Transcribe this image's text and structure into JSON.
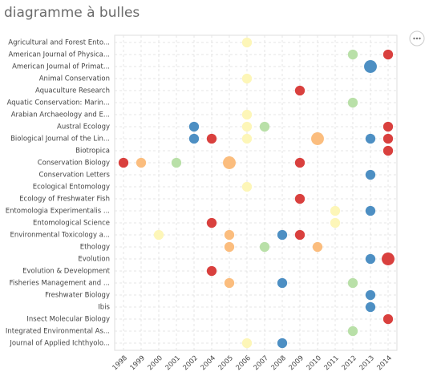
{
  "chart_data": {
    "type": "bubble",
    "title": "diagramme à bulles",
    "categories": [
      "Agricultural and Forest Ento...",
      "American Journal of Physica...",
      "American Journal of Primat...",
      "Animal Conservation",
      "Aquaculture Research",
      "Aquatic Conservation: Marin...",
      "Arabian Archaeology and E...",
      "Austral Ecology",
      "Biological Journal of the Lin...",
      "Biotropica",
      "Conservation Biology",
      "Conservation Letters",
      "Ecological Entomology",
      "Ecology of Freshwater Fish",
      "Entomologia Experimentalis ...",
      "Entomological Science",
      "Environmental Toxicology a...",
      "Ethology",
      "Evolution",
      "Evolution & Development",
      "Fisheries Management and ...",
      "Freshwater Biology",
      "Ibis",
      "Insect Molecular Biology",
      "Integrated Environmental As...",
      "Journal of Applied Ichthyolo..."
    ],
    "x_categories": [
      "1998",
      "1999",
      "2000",
      "2001",
      "2002",
      "2004",
      "2005",
      "2006",
      "2007",
      "2008",
      "2009",
      "2010",
      "2011",
      "2012",
      "2013",
      "2014"
    ],
    "points": [
      {
        "x": "2006",
        "y": "Agricultural and Forest Ento...",
        "size": 1,
        "color": "#fdf6b8"
      },
      {
        "x": "2012",
        "y": "American Journal of Physica...",
        "size": 1,
        "color": "#b9e0a8"
      },
      {
        "x": "2014",
        "y": "American Journal of Physica...",
        "size": 1,
        "color": "#d9403e"
      },
      {
        "x": "2013",
        "y": "American Journal of Primat...",
        "size": 2,
        "color": "#4d8fc3"
      },
      {
        "x": "2006",
        "y": "Animal Conservation",
        "size": 1,
        "color": "#fdf6b8"
      },
      {
        "x": "2009",
        "y": "Aquaculture Research",
        "size": 1,
        "color": "#d9403e"
      },
      {
        "x": "2012",
        "y": "Aquatic Conservation: Marin...",
        "size": 1,
        "color": "#b9e0a8"
      },
      {
        "x": "2006",
        "y": "Arabian Archaeology and E...",
        "size": 1,
        "color": "#fdf6b8"
      },
      {
        "x": "2002",
        "y": "Austral Ecology",
        "size": 1,
        "color": "#4d8fc3"
      },
      {
        "x": "2006",
        "y": "Austral Ecology",
        "size": 1,
        "color": "#fdf6b8"
      },
      {
        "x": "2007",
        "y": "Austral Ecology",
        "size": 1,
        "color": "#b9e0a8"
      },
      {
        "x": "2014",
        "y": "Austral Ecology",
        "size": 1,
        "color": "#d9403e"
      },
      {
        "x": "2002",
        "y": "Biological Journal of the Lin...",
        "size": 1,
        "color": "#4d8fc3"
      },
      {
        "x": "2004",
        "y": "Biological Journal of the Lin...",
        "size": 1,
        "color": "#d9403e"
      },
      {
        "x": "2006",
        "y": "Biological Journal of the Lin...",
        "size": 1,
        "color": "#fdf6b8"
      },
      {
        "x": "2010",
        "y": "Biological Journal of the Lin...",
        "size": 2,
        "color": "#fbbd7e"
      },
      {
        "x": "2013",
        "y": "Biological Journal of the Lin...",
        "size": 1,
        "color": "#4d8fc3"
      },
      {
        "x": "2014",
        "y": "Biological Journal of the Lin...",
        "size": 1,
        "color": "#d9403e"
      },
      {
        "x": "2014",
        "y": "Biotropica",
        "size": 1,
        "color": "#d9403e"
      },
      {
        "x": "1998",
        "y": "Conservation Biology",
        "size": 1,
        "color": "#d9403e"
      },
      {
        "x": "1999",
        "y": "Conservation Biology",
        "size": 1,
        "color": "#fbbd7e"
      },
      {
        "x": "2001",
        "y": "Conservation Biology",
        "size": 1,
        "color": "#b9e0a8"
      },
      {
        "x": "2005",
        "y": "Conservation Biology",
        "size": 2,
        "color": "#fbbd7e"
      },
      {
        "x": "2009",
        "y": "Conservation Biology",
        "size": 1,
        "color": "#d9403e"
      },
      {
        "x": "2013",
        "y": "Conservation Letters",
        "size": 1,
        "color": "#4d8fc3"
      },
      {
        "x": "2006",
        "y": "Ecological Entomology",
        "size": 1,
        "color": "#fdf6b8"
      },
      {
        "x": "2009",
        "y": "Ecology of Freshwater Fish",
        "size": 1,
        "color": "#d9403e"
      },
      {
        "x": "2011",
        "y": "Entomologia Experimentalis ...",
        "size": 1,
        "color": "#fdf6b8"
      },
      {
        "x": "2013",
        "y": "Entomologia Experimentalis ...",
        "size": 1,
        "color": "#4d8fc3"
      },
      {
        "x": "2004",
        "y": "Entomological Science",
        "size": 1,
        "color": "#d9403e"
      },
      {
        "x": "2011",
        "y": "Entomological Science",
        "size": 1,
        "color": "#fdf6b8"
      },
      {
        "x": "2000",
        "y": "Environmental Toxicology a...",
        "size": 1,
        "color": "#fdf6b8"
      },
      {
        "x": "2005",
        "y": "Environmental Toxicology a...",
        "size": 1,
        "color": "#fbbd7e"
      },
      {
        "x": "2008",
        "y": "Environmental Toxicology a...",
        "size": 1,
        "color": "#4d8fc3"
      },
      {
        "x": "2009",
        "y": "Environmental Toxicology a...",
        "size": 1,
        "color": "#d9403e"
      },
      {
        "x": "2005",
        "y": "Ethology",
        "size": 1,
        "color": "#fbbd7e"
      },
      {
        "x": "2007",
        "y": "Ethology",
        "size": 1,
        "color": "#b9e0a8"
      },
      {
        "x": "2010",
        "y": "Ethology",
        "size": 1,
        "color": "#fbbd7e"
      },
      {
        "x": "2013",
        "y": "Evolution",
        "size": 1,
        "color": "#4d8fc3"
      },
      {
        "x": "2014",
        "y": "Evolution",
        "size": 2,
        "color": "#d9403e"
      },
      {
        "x": "2004",
        "y": "Evolution & Development",
        "size": 1,
        "color": "#d9403e"
      },
      {
        "x": "2005",
        "y": "Fisheries Management and ...",
        "size": 1,
        "color": "#fbbd7e"
      },
      {
        "x": "2008",
        "y": "Fisheries Management and ...",
        "size": 1,
        "color": "#4d8fc3"
      },
      {
        "x": "2012",
        "y": "Fisheries Management and ...",
        "size": 1,
        "color": "#b9e0a8"
      },
      {
        "x": "2013",
        "y": "Freshwater Biology",
        "size": 1,
        "color": "#4d8fc3"
      },
      {
        "x": "2013",
        "y": "Ibis",
        "size": 1,
        "color": "#4d8fc3"
      },
      {
        "x": "2014",
        "y": "Insect Molecular Biology",
        "size": 1,
        "color": "#d9403e"
      },
      {
        "x": "2012",
        "y": "Integrated Environmental As...",
        "size": 1,
        "color": "#b9e0a8"
      },
      {
        "x": "2006",
        "y": "Journal of Applied Ichthyolo...",
        "size": 1,
        "color": "#fdf6b8"
      },
      {
        "x": "2008",
        "y": "Journal of Applied Ichthyolo...",
        "size": 1,
        "color": "#4d8fc3"
      }
    ],
    "grid": true
  }
}
